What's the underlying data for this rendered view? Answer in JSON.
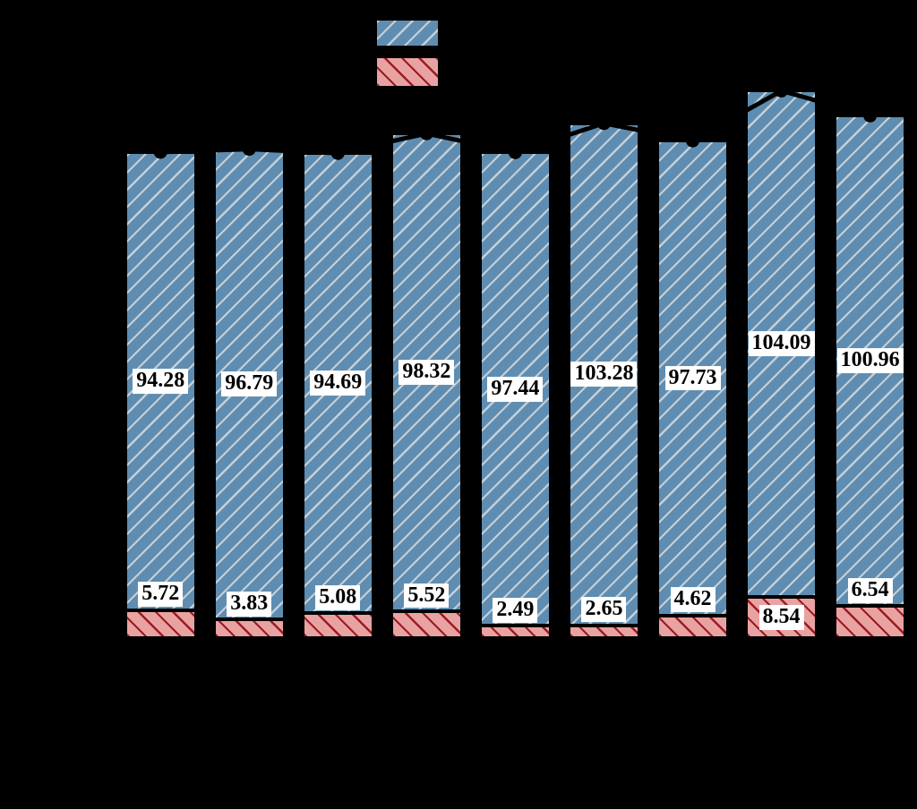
{
  "figure": {
    "background": "#000000",
    "axes_visible": false
  },
  "legend": {
    "items": [
      {
        "swatch": "blue-hatched",
        "label": ""
      },
      {
        "swatch": "red-hatched",
        "label": ""
      }
    ]
  },
  "chart_data": {
    "type": "bar",
    "subtype": "stacked-bars-with-total-line-overlay",
    "categories": [
      "",
      "",
      "",
      "",
      "",
      "",
      "",
      "",
      ""
    ],
    "series": [
      {
        "name": "bottom-red-hatched-segment",
        "stack_position": "bottom",
        "values": [
          5.72,
          3.83,
          5.08,
          5.52,
          2.49,
          2.65,
          4.62,
          8.54,
          6.54
        ],
        "labels": [
          "5.72",
          "3.83",
          "5.08",
          "5.52",
          "2.49",
          "2.65",
          "4.62",
          "8.54",
          "6.54"
        ],
        "fill": "#e9a2a2",
        "hatch_color": "#9b1c22",
        "hatch_direction": "\\",
        "edge_color": "#000000"
      },
      {
        "name": "top-blue-hatched-segment",
        "stack_position": "top",
        "values": [
          94.28,
          96.79,
          94.69,
          98.32,
          97.44,
          103.28,
          97.73,
          104.09,
          100.96
        ],
        "labels": [
          "94.28",
          "96.79",
          "94.69",
          "98.32",
          "97.44",
          "103.28",
          "97.73",
          "104.09",
          "100.96"
        ],
        "fill": "#5e8db1",
        "hatch_color": "#c6cfd6",
        "hatch_direction": "/",
        "edge_color": "#000000"
      }
    ],
    "line_overlay": {
      "description": "black line with filled circular markers passing through stack totals",
      "totals": [
        100.0,
        100.62,
        99.77,
        103.84,
        99.93,
        105.93,
        102.35,
        112.63,
        107.5
      ],
      "color": "#000000",
      "marker": "circle"
    },
    "value_label_style": {
      "background": "#ffffff",
      "text_color": "#000000"
    }
  }
}
